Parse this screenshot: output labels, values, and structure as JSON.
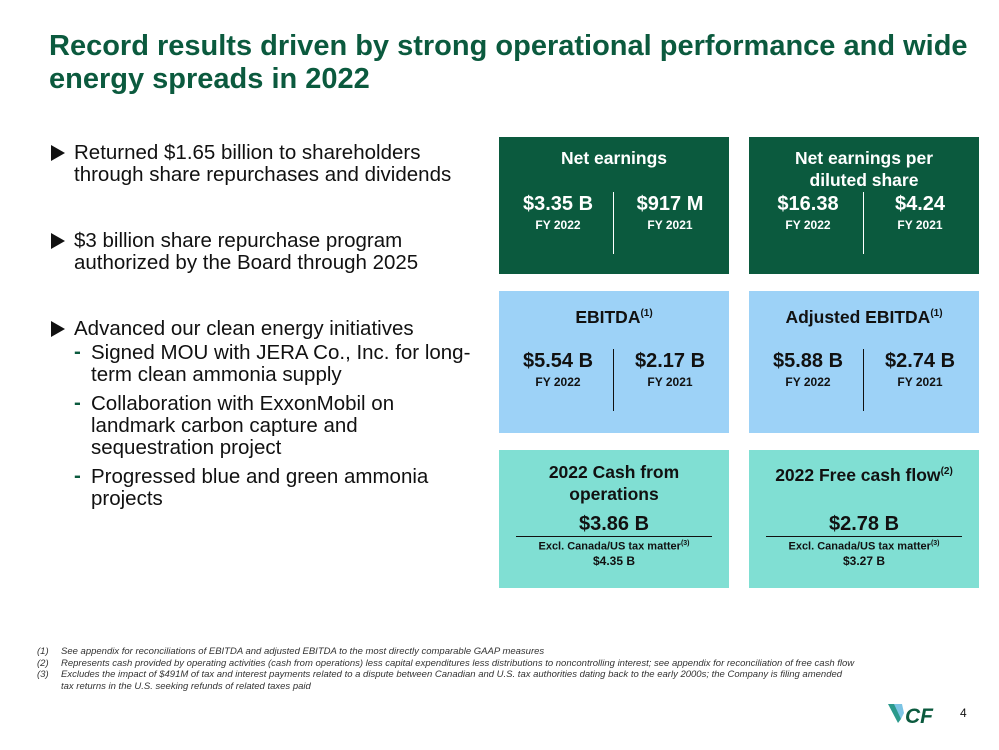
{
  "title": "Record results driven by strong operational performance and wide energy spreads in 2022",
  "bullets": [
    {
      "text": "Returned $1.65 billion to shareholders through share repurchases and dividends"
    },
    {
      "text": "$3 billion share repurchase program authorized by the Board through 2025"
    },
    {
      "text": "Advanced our clean energy initiatives",
      "subs": [
        "Signed MOU with JERA Co., Inc. for long-term clean ammonia supply",
        "Collaboration with ExxonMobil on landmark carbon capture and sequestration project",
        "Progressed blue and green ammonia projects"
      ]
    }
  ],
  "cards": {
    "net_earnings": {
      "title": "Net earnings",
      "left_value": "$3.35 B",
      "left_period": "FY 2022",
      "right_value": "$917 M",
      "right_period": "FY 2021"
    },
    "net_earnings_per_share": {
      "title": "Net earnings per diluted share",
      "left_value": "$16.38",
      "left_period": "FY 2022",
      "right_value": "$4.24",
      "right_period": "FY 2021"
    },
    "ebitda": {
      "title": "EBITDA",
      "note": "(1)",
      "left_value": "$5.54 B",
      "left_period": "FY 2022",
      "right_value": "$2.17 B",
      "right_period": "FY 2021"
    },
    "adjusted_ebitda": {
      "title": "Adjusted EBITDA",
      "note": "(1)",
      "left_value": "$5.88 B",
      "left_period": "FY 2022",
      "right_value": "$2.74 B",
      "right_period": "FY 2021"
    },
    "cash_from_operations": {
      "title": "2022 Cash from operations",
      "value": "$3.86 B",
      "excl_label": "Excl. Canada/US tax matter",
      "excl_note": "(3)",
      "excl_value": "$4.35 B"
    },
    "free_cash_flow": {
      "title": "2022 Free cash flow",
      "note": "(2)",
      "value": "$2.78 B",
      "excl_label": "Excl. Canada/US tax matter",
      "excl_note": "(3)",
      "excl_value": "$3.27 B"
    }
  },
  "footnotes": [
    {
      "num": "(1)",
      "text": "See appendix for reconciliations of EBITDA and adjusted EBITDA to the most directly comparable GAAP measures"
    },
    {
      "num": "(2)",
      "text": "Represents cash provided by operating activities (cash from operations) less capital expenditures less distributions to noncontrolling interest; see appendix for reconciliation of free cash flow"
    },
    {
      "num": "(3)",
      "text": "Excludes the impact of $491M of tax and interest payments related to a dispute between Canadian and U.S. tax authorities dating back to the early 2000s; the Company is filing amended tax returns in the U.S. seeking refunds of related taxes paid"
    }
  ],
  "logo": {
    "text": "CF",
    "icon": "cf-logo-icon",
    "color": "#0b5a3e"
  },
  "page_number": "4"
}
